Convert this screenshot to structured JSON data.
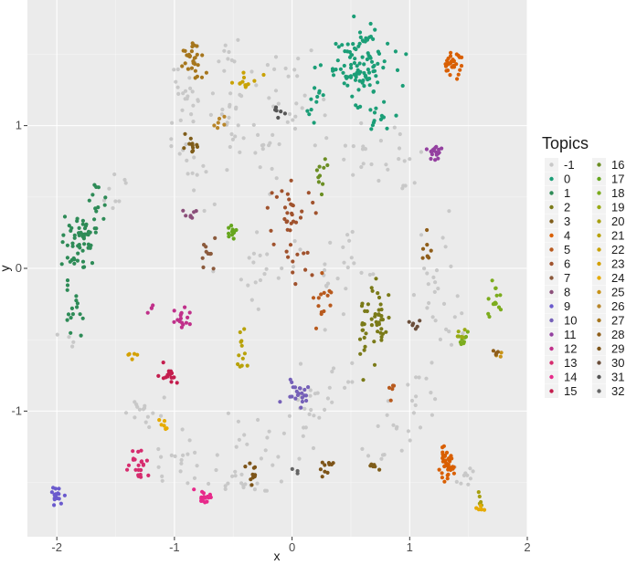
{
  "chart_data": {
    "type": "scatter",
    "title": "",
    "xlabel": "x",
    "ylabel": "y",
    "xlim": [
      -2.25,
      2.0
    ],
    "ylim": [
      -1.88,
      1.88
    ],
    "x_ticks": [
      -2,
      -1,
      0,
      1,
      2
    ],
    "y_ticks": [
      -1,
      0,
      1
    ],
    "grid": true,
    "background": "#ebebeb",
    "legend": {
      "title": "Topics",
      "placement": "right",
      "columns": 2,
      "entries": [
        "-1",
        "0",
        "1",
        "2",
        "3",
        "4",
        "5",
        "6",
        "7",
        "8",
        "9",
        "10",
        "11",
        "12",
        "13",
        "14",
        "15",
        "16",
        "17",
        "18",
        "19",
        "20",
        "21",
        "22",
        "23",
        "24",
        "25",
        "26",
        "27",
        "28",
        "29",
        "30",
        "31",
        "32"
      ]
    },
    "series": [
      {
        "name": "-1",
        "color": "#c8c8c8",
        "clusters": [
          [
            -0.9,
            1.2,
            0.12,
            0.15,
            25
          ],
          [
            -0.5,
            1.05,
            0.12,
            0.15,
            20
          ],
          [
            0.0,
            1.2,
            0.15,
            0.2,
            25
          ],
          [
            -0.85,
            0.7,
            0.12,
            0.2,
            15
          ],
          [
            -0.3,
            0.75,
            0.15,
            0.15,
            15
          ],
          [
            0.6,
            0.8,
            0.15,
            0.15,
            15
          ],
          [
            0.95,
            0.75,
            0.1,
            0.15,
            12
          ],
          [
            -0.15,
            0.0,
            0.2,
            0.2,
            20
          ],
          [
            0.3,
            -0.1,
            0.12,
            0.2,
            10
          ],
          [
            0.55,
            0.1,
            0.12,
            0.15,
            12
          ],
          [
            1.2,
            0.0,
            0.12,
            0.25,
            15
          ],
          [
            1.35,
            -0.3,
            0.12,
            0.15,
            12
          ],
          [
            -1.25,
            -1.0,
            0.1,
            0.1,
            15
          ],
          [
            -1.0,
            -1.35,
            0.12,
            0.15,
            18
          ],
          [
            -0.4,
            -1.25,
            0.15,
            0.2,
            20
          ],
          [
            0.1,
            -1.1,
            0.15,
            0.2,
            18
          ],
          [
            0.4,
            -0.8,
            0.15,
            0.1,
            12
          ],
          [
            0.8,
            -1.15,
            0.15,
            0.15,
            15
          ],
          [
            1.1,
            -0.9,
            0.1,
            0.15,
            12
          ],
          [
            -1.5,
            0.5,
            0.1,
            0.1,
            8
          ],
          [
            -0.45,
            -1.5,
            0.2,
            0.04,
            15
          ],
          [
            1.45,
            -1.45,
            0.08,
            0.08,
            10
          ],
          [
            -0.55,
            1.45,
            0.1,
            0.08,
            10
          ],
          [
            -1.9,
            -0.5,
            0.05,
            0.05,
            4
          ]
        ]
      },
      {
        "name": "0",
        "color": "#1b9e77",
        "clusters": [
          [
            0.55,
            1.4,
            0.18,
            0.13,
            90
          ],
          [
            0.72,
            1.05,
            0.08,
            0.08,
            15
          ],
          [
            0.6,
            1.62,
            0.1,
            0.08,
            15
          ],
          [
            0.22,
            1.2,
            0.08,
            0.1,
            10
          ]
        ]
      },
      {
        "name": "1",
        "color": "#2e8b57",
        "clusters": [
          [
            -1.85,
            0.15,
            0.06,
            0.12,
            40
          ],
          [
            -1.72,
            0.25,
            0.05,
            0.1,
            20
          ],
          [
            -1.85,
            -0.3,
            0.05,
            0.12,
            15
          ],
          [
            -1.65,
            0.45,
            0.05,
            0.08,
            12
          ]
        ]
      },
      {
        "name": "2",
        "color": "#7a7a18",
        "clusters": [
          [
            0.75,
            -0.35,
            0.06,
            0.16,
            35
          ],
          [
            0.58,
            -0.5,
            0.04,
            0.15,
            15
          ]
        ]
      },
      {
        "name": "3",
        "color": "#7f5d1a",
        "clusters": [
          [
            -0.85,
            0.85,
            0.05,
            0.04,
            12
          ],
          [
            0.7,
            -1.4,
            0.04,
            0.03,
            6
          ]
        ]
      },
      {
        "name": "4",
        "color": "#d95f02",
        "clusters": [
          [
            1.31,
            -1.38,
            0.04,
            0.06,
            40
          ],
          [
            1.36,
            1.43,
            0.05,
            0.05,
            30
          ]
        ]
      },
      {
        "name": "5",
        "color": "#b85a1e",
        "clusters": [
          [
            0.25,
            -0.25,
            0.06,
            0.13,
            14
          ],
          [
            0.85,
            -0.85,
            0.03,
            0.05,
            5
          ]
        ]
      },
      {
        "name": "6",
        "color": "#a0522d",
        "clusters": [
          [
            0.0,
            0.4,
            0.12,
            0.12,
            30
          ],
          [
            0.05,
            0.05,
            0.08,
            0.06,
            10
          ]
        ]
      },
      {
        "name": "7",
        "color": "#8b5a3c",
        "clusters": [
          [
            -0.72,
            0.1,
            0.05,
            0.08,
            10
          ]
        ]
      },
      {
        "name": "8",
        "color": "#8b4f7a",
        "clusters": [
          [
            -0.85,
            0.38,
            0.04,
            0.04,
            7
          ]
        ]
      },
      {
        "name": "9",
        "color": "#6a5acd",
        "clusters": [
          [
            -2.0,
            -1.6,
            0.04,
            0.04,
            16
          ]
        ]
      },
      {
        "name": "10",
        "color": "#7560b8",
        "clusters": [
          [
            0.05,
            -0.85,
            0.08,
            0.06,
            22
          ]
        ]
      },
      {
        "name": "11",
        "color": "#9440a0",
        "clusters": [
          [
            1.22,
            0.8,
            0.05,
            0.05,
            20
          ]
        ]
      },
      {
        "name": "12",
        "color": "#c0308a",
        "clusters": [
          [
            -0.92,
            -0.35,
            0.06,
            0.07,
            16
          ],
          [
            -1.2,
            -0.3,
            0.03,
            0.03,
            4
          ]
        ]
      },
      {
        "name": "13",
        "color": "#d62c6e",
        "clusters": [
          [
            -1.3,
            -1.35,
            0.05,
            0.07,
            22
          ]
        ]
      },
      {
        "name": "14",
        "color": "#e7298a",
        "clusters": [
          [
            -0.75,
            -1.6,
            0.05,
            0.03,
            18
          ]
        ]
      },
      {
        "name": "15",
        "color": "#c41e4e",
        "clusters": [
          [
            -1.05,
            -0.75,
            0.05,
            0.04,
            16
          ]
        ]
      },
      {
        "name": "16",
        "color": "#6b8e23",
        "clusters": [
          [
            0.25,
            0.68,
            0.03,
            0.06,
            10
          ]
        ]
      },
      {
        "name": "17",
        "color": "#66a61e",
        "clusters": [
          [
            -0.5,
            0.25,
            0.03,
            0.04,
            12
          ]
        ]
      },
      {
        "name": "18",
        "color": "#7cac1e",
        "clusters": [
          [
            1.72,
            -0.2,
            0.04,
            0.1,
            15
          ],
          [
            1.45,
            -0.5,
            0.04,
            0.04,
            10
          ]
        ]
      },
      {
        "name": "19",
        "color": "#9aab14",
        "clusters": [
          [
            1.46,
            -0.45,
            0.03,
            0.04,
            5
          ]
        ]
      },
      {
        "name": "20",
        "color": "#a8a010",
        "clusters": [
          [
            1.6,
            -1.62,
            0.02,
            0.04,
            6
          ]
        ]
      },
      {
        "name": "21",
        "color": "#b8a20a",
        "clusters": [
          [
            -0.42,
            -0.6,
            0.05,
            0.08,
            12
          ]
        ]
      },
      {
        "name": "22",
        "color": "#c9a205",
        "clusters": [
          [
            -0.4,
            1.3,
            0.08,
            0.04,
            12
          ]
        ]
      },
      {
        "name": "23",
        "color": "#d4a000",
        "clusters": [
          [
            -1.35,
            -0.6,
            0.03,
            0.02,
            5
          ]
        ]
      },
      {
        "name": "24",
        "color": "#e6ab02",
        "clusters": [
          [
            1.61,
            -1.68,
            0.02,
            0.02,
            6
          ],
          [
            -1.08,
            -1.1,
            0.03,
            0.03,
            6
          ]
        ]
      },
      {
        "name": "25",
        "color": "#c89318",
        "clusters": [
          [
            1.75,
            -0.6,
            0.02,
            0.02,
            3
          ]
        ]
      },
      {
        "name": "26",
        "color": "#b8862b",
        "clusters": [
          [
            -0.6,
            1.0,
            0.05,
            0.05,
            6
          ]
        ]
      },
      {
        "name": "27",
        "color": "#a6761d",
        "clusters": [
          [
            -0.85,
            1.45,
            0.07,
            0.1,
            30
          ]
        ]
      },
      {
        "name": "28",
        "color": "#8f5e1a",
        "clusters": [
          [
            1.15,
            0.1,
            0.03,
            0.1,
            8
          ],
          [
            1.75,
            -0.58,
            0.02,
            0.02,
            4
          ]
        ]
      },
      {
        "name": "29",
        "color": "#7d5418",
        "clusters": [
          [
            0.3,
            -1.4,
            0.04,
            0.04,
            10
          ],
          [
            -0.35,
            -1.45,
            0.06,
            0.04,
            10
          ]
        ]
      },
      {
        "name": "30",
        "color": "#6b4e3a",
        "clusters": [
          [
            1.05,
            -0.4,
            0.05,
            0.04,
            6
          ]
        ]
      },
      {
        "name": "31",
        "color": "#555555",
        "clusters": [
          [
            -0.1,
            1.1,
            0.03,
            0.02,
            6
          ]
        ]
      },
      {
        "name": "32",
        "color": "#666666",
        "clusters": [
          [
            0.05,
            -1.42,
            0.02,
            0.02,
            3
          ]
        ]
      }
    ]
  }
}
